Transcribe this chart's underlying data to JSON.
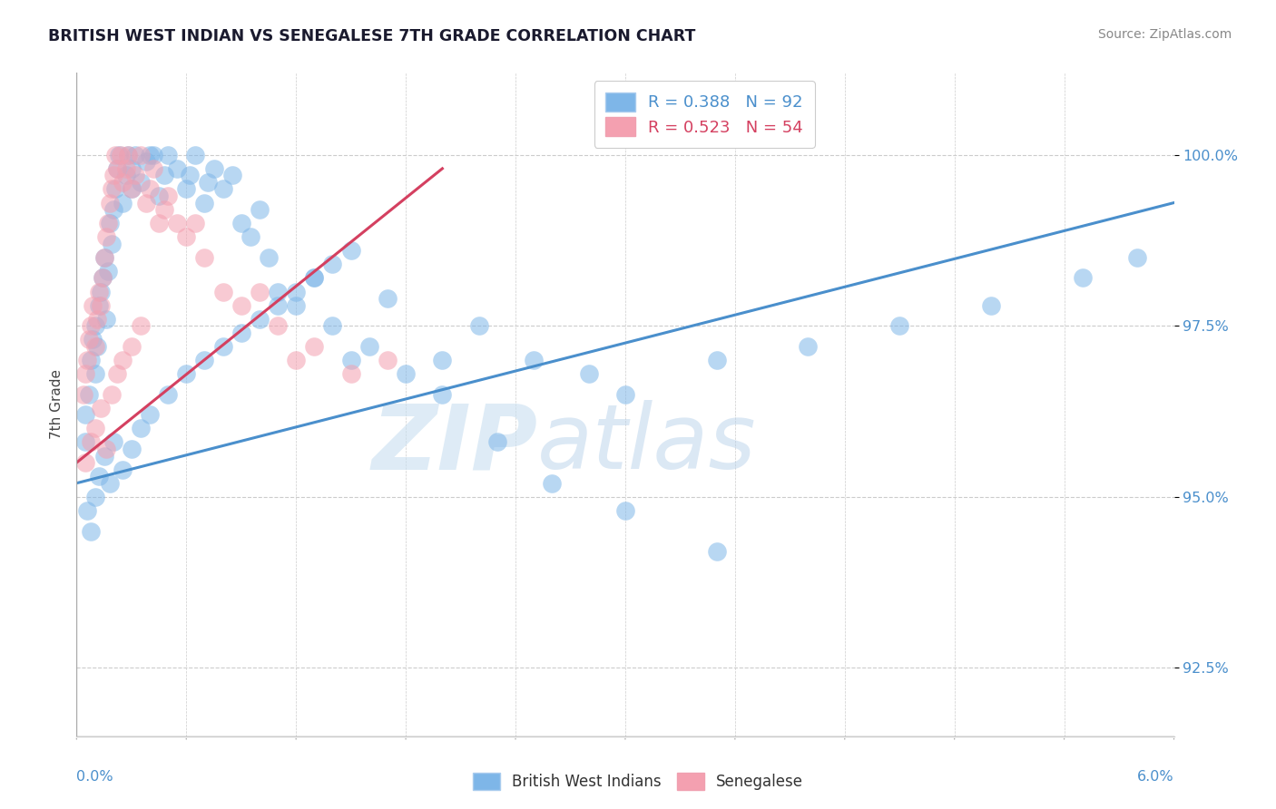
{
  "title": "BRITISH WEST INDIAN VS SENEGALESE 7TH GRADE CORRELATION CHART",
  "source_text": "Source: ZipAtlas.com",
  "ylabel": "7th Grade",
  "xmin": 0.0,
  "xmax": 6.0,
  "ymin": 91.5,
  "ymax": 101.2,
  "yticks": [
    92.5,
    95.0,
    97.5,
    100.0
  ],
  "ytick_labels": [
    "92.5%",
    "95.0%",
    "97.5%",
    "100.0%"
  ],
  "blue_color": "#7eb6e8",
  "pink_color": "#f4a0b0",
  "blue_line_color": "#4a8fcc",
  "pink_line_color": "#d44060",
  "legend_blue_label": "R = 0.388   N = 92",
  "legend_pink_label": "R = 0.523   N = 54",
  "legend_blue_text_color": "#4a8fcc",
  "legend_pink_text_color": "#d44060",
  "watermark": "ZIPatlas",
  "blue_line_x": [
    0.0,
    6.0
  ],
  "blue_line_y": [
    95.2,
    99.3
  ],
  "pink_line_x": [
    0.0,
    2.0
  ],
  "pink_line_y": [
    95.5,
    99.8
  ],
  "blue_scatter_x": [
    0.05,
    0.05,
    0.07,
    0.08,
    0.09,
    0.1,
    0.1,
    0.11,
    0.12,
    0.13,
    0.14,
    0.15,
    0.16,
    0.17,
    0.18,
    0.19,
    0.2,
    0.21,
    0.22,
    0.23,
    0.25,
    0.27,
    0.28,
    0.3,
    0.3,
    0.32,
    0.35,
    0.38,
    0.4,
    0.42,
    0.45,
    0.48,
    0.5,
    0.55,
    0.6,
    0.62,
    0.65,
    0.7,
    0.72,
    0.75,
    0.8,
    0.85,
    0.9,
    0.95,
    1.0,
    1.05,
    1.1,
    1.2,
    1.3,
    1.4,
    1.5,
    1.6,
    1.8,
    2.0,
    2.2,
    2.5,
    2.8,
    3.0,
    3.5,
    4.0,
    4.5,
    5.0,
    5.5,
    5.8,
    0.06,
    0.08,
    0.1,
    0.12,
    0.15,
    0.18,
    0.2,
    0.25,
    0.3,
    0.35,
    0.4,
    0.5,
    0.6,
    0.7,
    0.8,
    0.9,
    1.0,
    1.1,
    1.2,
    1.3,
    1.4,
    1.5,
    1.7,
    2.0,
    2.3,
    2.6,
    3.0,
    3.5
  ],
  "blue_scatter_y": [
    95.8,
    96.2,
    96.5,
    97.0,
    97.3,
    96.8,
    97.5,
    97.2,
    97.8,
    98.0,
    98.2,
    98.5,
    97.6,
    98.3,
    99.0,
    98.7,
    99.2,
    99.5,
    99.8,
    100.0,
    99.3,
    99.7,
    100.0,
    99.5,
    99.8,
    100.0,
    99.6,
    99.9,
    100.0,
    100.0,
    99.4,
    99.7,
    100.0,
    99.8,
    99.5,
    99.7,
    100.0,
    99.3,
    99.6,
    99.8,
    99.5,
    99.7,
    99.0,
    98.8,
    99.2,
    98.5,
    98.0,
    97.8,
    98.2,
    97.5,
    97.0,
    97.2,
    96.8,
    97.0,
    97.5,
    97.0,
    96.8,
    96.5,
    97.0,
    97.2,
    97.5,
    97.8,
    98.2,
    98.5,
    94.8,
    94.5,
    95.0,
    95.3,
    95.6,
    95.2,
    95.8,
    95.4,
    95.7,
    96.0,
    96.2,
    96.5,
    96.8,
    97.0,
    97.2,
    97.4,
    97.6,
    97.8,
    98.0,
    98.2,
    98.4,
    98.6,
    97.9,
    96.5,
    95.8,
    95.2,
    94.8,
    94.2
  ],
  "pink_scatter_x": [
    0.04,
    0.05,
    0.06,
    0.07,
    0.08,
    0.09,
    0.1,
    0.11,
    0.12,
    0.13,
    0.14,
    0.15,
    0.16,
    0.17,
    0.18,
    0.19,
    0.2,
    0.21,
    0.22,
    0.24,
    0.25,
    0.27,
    0.28,
    0.3,
    0.32,
    0.35,
    0.38,
    0.4,
    0.42,
    0.45,
    0.48,
    0.5,
    0.55,
    0.6,
    0.65,
    0.7,
    0.8,
    0.9,
    1.0,
    1.1,
    1.2,
    1.3,
    1.5,
    1.7,
    0.05,
    0.08,
    0.1,
    0.13,
    0.16,
    0.19,
    0.22,
    0.25,
    0.3,
    0.35
  ],
  "pink_scatter_y": [
    96.5,
    96.8,
    97.0,
    97.3,
    97.5,
    97.8,
    97.2,
    97.6,
    98.0,
    97.8,
    98.2,
    98.5,
    98.8,
    99.0,
    99.3,
    99.5,
    99.7,
    100.0,
    99.8,
    100.0,
    99.6,
    99.8,
    100.0,
    99.5,
    99.7,
    100.0,
    99.3,
    99.5,
    99.8,
    99.0,
    99.2,
    99.4,
    99.0,
    98.8,
    99.0,
    98.5,
    98.0,
    97.8,
    98.0,
    97.5,
    97.0,
    97.2,
    96.8,
    97.0,
    95.5,
    95.8,
    96.0,
    96.3,
    95.7,
    96.5,
    96.8,
    97.0,
    97.2,
    97.5
  ]
}
